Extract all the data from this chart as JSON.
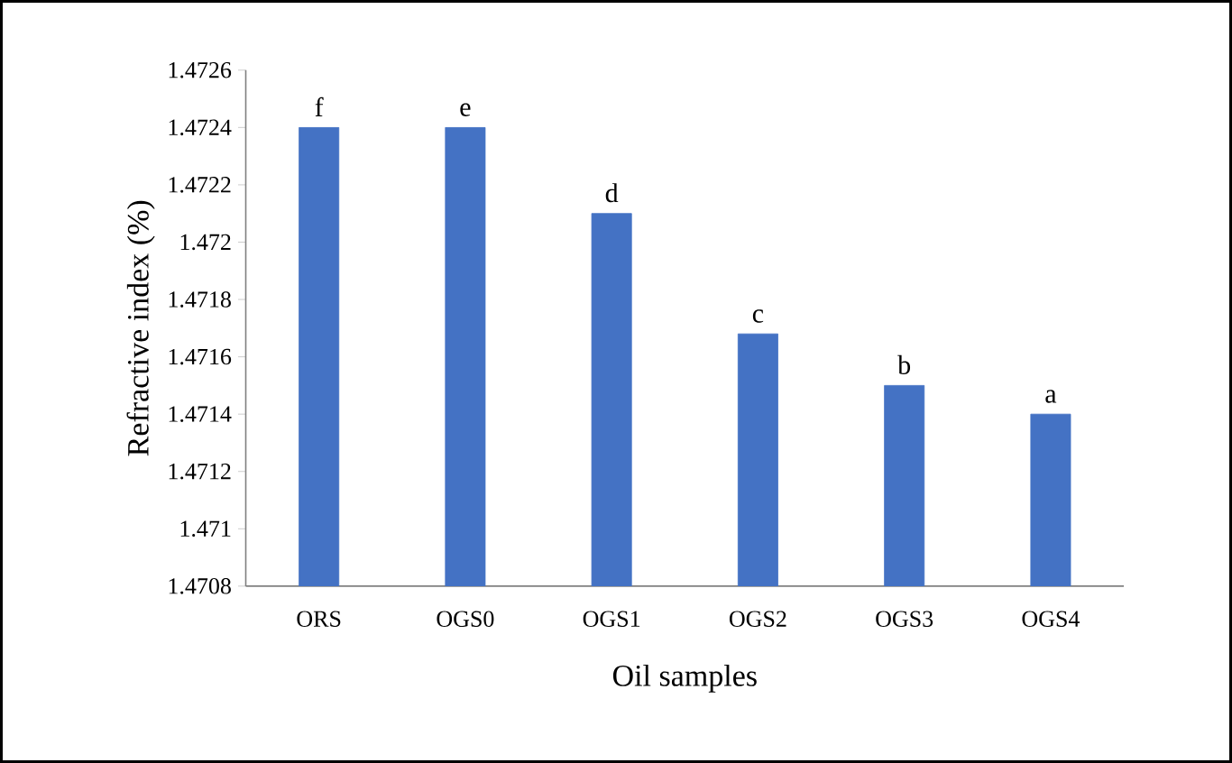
{
  "chart_data": {
    "type": "bar",
    "xlabel": "Oil samples",
    "ylabel": "Refractive index (%)",
    "categories": [
      "ORS",
      "OGS0",
      "OGS1",
      "OGS2",
      "OGS3",
      "OGS4"
    ],
    "values": [
      1.4724,
      1.4724,
      1.4721,
      1.47168,
      1.4715,
      1.4714
    ],
    "color": "#4472c4",
    "ylim": [
      1.4708,
      1.4726
    ],
    "yticks": [
      1.4708,
      1.471,
      1.4712,
      1.4714,
      1.4716,
      1.4718,
      1.472,
      1.4722,
      1.4724,
      1.4726
    ],
    "grid": false,
    "annotations": [
      {
        "text": "f",
        "x": "ORS",
        "y": 1.4724
      },
      {
        "text": "e",
        "x": "OGS0",
        "y": 1.4724
      },
      {
        "text": "d",
        "x": "OGS1",
        "y": 1.4721
      },
      {
        "text": "c",
        "x": "OGS2",
        "y": 1.47168
      },
      {
        "text": "b",
        "x": "OGS3",
        "y": 1.4715
      },
      {
        "text": "a",
        "x": "OGS4",
        "y": 1.4714
      }
    ]
  }
}
